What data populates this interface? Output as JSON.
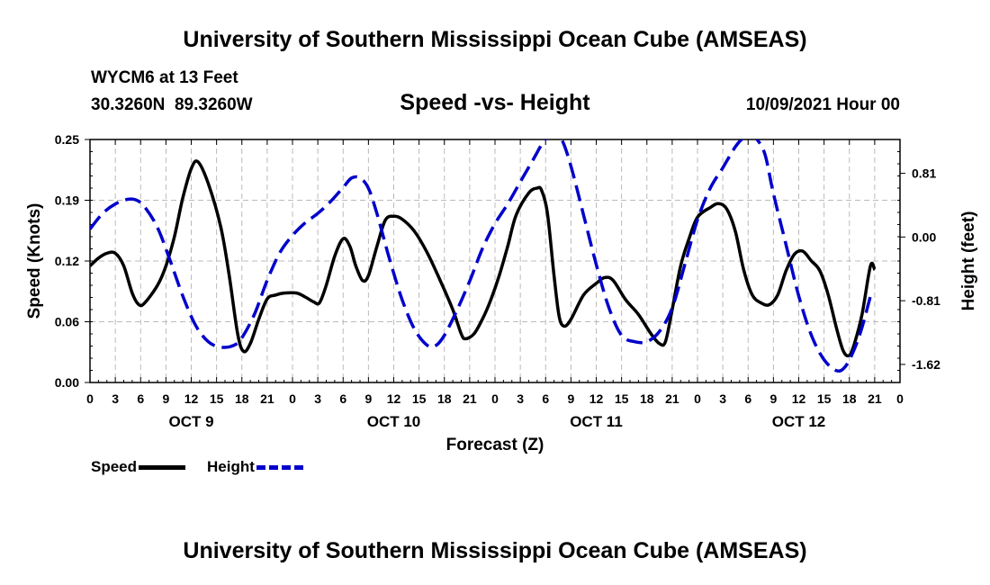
{
  "header": {
    "title": "University of Southern Mississippi Ocean Cube (AMSEAS)",
    "station": "WYCM6 at 13 Feet",
    "coords": "30.3260N  89.3260W",
    "subtitle": "Speed -vs- Height",
    "datestamp": "10/09/2021 Hour 00"
  },
  "footer": {
    "title": "University of Southern Mississippi Ocean Cube (AMSEAS)"
  },
  "legend": {
    "speed": "Speed",
    "height": "Height"
  },
  "colors": {
    "speed": "#000000",
    "height": "#0000cc",
    "grid": "#bbbbbb"
  },
  "chart_data": {
    "type": "line",
    "title": "Speed -vs- Height",
    "xlabel": "Forecast (Z)",
    "ylabel": "Speed (Knots)",
    "y2label": "Height (feet)",
    "xlim": [
      0,
      96
    ],
    "ylim": [
      0,
      0.25
    ],
    "y2lim": [
      -1.85,
      1.24
    ],
    "yticks": [
      "0.00",
      "0.06",
      "0.12",
      "0.19",
      "0.25"
    ],
    "yticks_values": [
      0,
      0.0625,
      0.125,
      0.1875,
      0.25
    ],
    "y2ticks": [
      "-1.62",
      "-0.81",
      "0.00",
      "0.81"
    ],
    "y2ticks_values": [
      -1.62,
      -0.81,
      0.0,
      0.81
    ],
    "xticks_values": [
      0,
      3,
      6,
      9,
      12,
      15,
      18,
      21,
      24,
      27,
      30,
      33,
      36,
      39,
      42,
      45,
      48,
      51,
      54,
      57,
      60,
      63,
      66,
      69,
      72,
      75,
      78,
      81,
      84,
      87,
      90,
      93,
      96
    ],
    "xticks": [
      "0",
      "3",
      "6",
      "9",
      "12",
      "15",
      "18",
      "21",
      "0",
      "3",
      "6",
      "9",
      "12",
      "15",
      "18",
      "21",
      "0",
      "3",
      "6",
      "9",
      "12",
      "15",
      "18",
      "21",
      "0",
      "3",
      "6",
      "9",
      "12",
      "15",
      "18",
      "21",
      "0"
    ],
    "days": [
      {
        "label": "OCT 9",
        "hour": 12
      },
      {
        "label": "OCT 10",
        "hour": 36
      },
      {
        "label": "OCT 11",
        "hour": 60
      },
      {
        "label": "OCT 12",
        "hour": 84
      }
    ],
    "grid": true,
    "series": [
      {
        "name": "Speed",
        "axis": "left",
        "style": "solid",
        "points": [
          [
            0,
            0.12
          ],
          [
            1,
            0.128
          ],
          [
            2,
            0.133
          ],
          [
            3,
            0.133
          ],
          [
            4,
            0.12
          ],
          [
            5,
            0.092
          ],
          [
            5.8,
            0.08
          ],
          [
            6.5,
            0.082
          ],
          [
            8,
            0.1
          ],
          [
            9,
            0.12
          ],
          [
            10,
            0.15
          ],
          [
            11,
            0.19
          ],
          [
            12,
            0.22
          ],
          [
            12.8,
            0.227
          ],
          [
            14,
            0.205
          ],
          [
            15.5,
            0.16
          ],
          [
            16.5,
            0.11
          ],
          [
            17.5,
            0.05
          ],
          [
            18.2,
            0.032
          ],
          [
            19,
            0.04
          ],
          [
            20,
            0.065
          ],
          [
            21,
            0.086
          ],
          [
            22,
            0.09
          ],
          [
            23,
            0.092
          ],
          [
            24.5,
            0.092
          ],
          [
            25.5,
            0.088
          ],
          [
            26.5,
            0.083
          ],
          [
            27.2,
            0.082
          ],
          [
            28,
            0.1
          ],
          [
            29,
            0.13
          ],
          [
            30,
            0.148
          ],
          [
            30.8,
            0.14
          ],
          [
            31.5,
            0.12
          ],
          [
            32.3,
            0.105
          ],
          [
            33,
            0.11
          ],
          [
            34,
            0.14
          ],
          [
            35,
            0.167
          ],
          [
            36,
            0.171
          ],
          [
            37,
            0.168
          ],
          [
            38.5,
            0.155
          ],
          [
            40,
            0.133
          ],
          [
            41.5,
            0.105
          ],
          [
            43,
            0.075
          ],
          [
            44,
            0.05
          ],
          [
            44.5,
            0.045
          ],
          [
            45.5,
            0.05
          ],
          [
            46.5,
            0.065
          ],
          [
            47.5,
            0.085
          ],
          [
            48.5,
            0.11
          ],
          [
            49.5,
            0.14
          ],
          [
            50.5,
            0.172
          ],
          [
            52,
            0.195
          ],
          [
            53,
            0.2
          ],
          [
            53.5,
            0.198
          ],
          [
            54.2,
            0.175
          ],
          [
            55,
            0.11
          ],
          [
            55.6,
            0.068
          ],
          [
            56.2,
            0.058
          ],
          [
            57,
            0.065
          ],
          [
            58.5,
            0.09
          ],
          [
            60,
            0.102
          ],
          [
            61,
            0.108
          ],
          [
            62,
            0.105
          ],
          [
            63.5,
            0.085
          ],
          [
            65,
            0.07
          ],
          [
            66.5,
            0.05
          ],
          [
            67.5,
            0.04
          ],
          [
            68.2,
            0.042
          ],
          [
            69,
            0.075
          ],
          [
            70,
            0.12
          ],
          [
            71,
            0.148
          ],
          [
            72,
            0.17
          ],
          [
            73.5,
            0.18
          ],
          [
            74.5,
            0.184
          ],
          [
            75.5,
            0.178
          ],
          [
            76.5,
            0.155
          ],
          [
            77.5,
            0.115
          ],
          [
            78.5,
            0.09
          ],
          [
            79.5,
            0.082
          ],
          [
            80.5,
            0.08
          ],
          [
            81.5,
            0.09
          ],
          [
            82.5,
            0.115
          ],
          [
            83.5,
            0.132
          ],
          [
            84.5,
            0.135
          ],
          [
            85.5,
            0.125
          ],
          [
            86.5,
            0.115
          ],
          [
            87.5,
            0.09
          ],
          [
            88.5,
            0.055
          ],
          [
            89.3,
            0.032
          ],
          [
            90,
            0.028
          ],
          [
            90.6,
            0.04
          ],
          [
            91.5,
            0.07
          ],
          [
            92.5,
            0.12
          ],
          [
            93,
            0.116
          ]
        ]
      },
      {
        "name": "Height",
        "axis": "right",
        "style": "dashed",
        "points": [
          [
            0,
            0.1
          ],
          [
            1.5,
            0.3
          ],
          [
            3,
            0.42
          ],
          [
            4.5,
            0.48
          ],
          [
            5.5,
            0.47
          ],
          [
            6.5,
            0.38
          ],
          [
            8,
            0.12
          ],
          [
            9.5,
            -0.3
          ],
          [
            11,
            -0.75
          ],
          [
            12.5,
            -1.12
          ],
          [
            14,
            -1.33
          ],
          [
            15.5,
            -1.4
          ],
          [
            17,
            -1.38
          ],
          [
            18,
            -1.28
          ],
          [
            19.5,
            -0.98
          ],
          [
            21,
            -0.55
          ],
          [
            22.5,
            -0.2
          ],
          [
            24,
            0.02
          ],
          [
            25.5,
            0.18
          ],
          [
            27,
            0.3
          ],
          [
            28.5,
            0.45
          ],
          [
            30,
            0.63
          ],
          [
            31,
            0.75
          ],
          [
            32,
            0.75
          ],
          [
            33,
            0.62
          ],
          [
            34,
            0.3
          ],
          [
            35.5,
            -0.28
          ],
          [
            37,
            -0.8
          ],
          [
            38.5,
            -1.18
          ],
          [
            40,
            -1.38
          ],
          [
            41,
            -1.38
          ],
          [
            42,
            -1.25
          ],
          [
            43.5,
            -0.93
          ],
          [
            45,
            -0.56
          ],
          [
            46.5,
            -0.15
          ],
          [
            48,
            0.17
          ],
          [
            49.5,
            0.42
          ],
          [
            51,
            0.7
          ],
          [
            52.5,
            0.98
          ],
          [
            54,
            1.25
          ],
          [
            55.2,
            1.31
          ],
          [
            56,
            1.22
          ],
          [
            57,
            0.9
          ],
          [
            58.5,
            0.28
          ],
          [
            60,
            -0.35
          ],
          [
            61.5,
            -0.9
          ],
          [
            63,
            -1.25
          ],
          [
            64.5,
            -1.33
          ],
          [
            66,
            -1.33
          ],
          [
            67.5,
            -1.2
          ],
          [
            69,
            -0.9
          ],
          [
            70.5,
            -0.35
          ],
          [
            72,
            0.22
          ],
          [
            73.5,
            0.62
          ],
          [
            75,
            0.88
          ],
          [
            76.5,
            1.15
          ],
          [
            77.5,
            1.27
          ],
          [
            78.3,
            1.32
          ],
          [
            79,
            1.25
          ],
          [
            80,
            1.05
          ],
          [
            81,
            0.55
          ],
          [
            82.5,
            -0.1
          ],
          [
            84,
            -0.75
          ],
          [
            85.5,
            -1.25
          ],
          [
            87,
            -1.56
          ],
          [
            88.5,
            -1.7
          ],
          [
            89.5,
            -1.65
          ],
          [
            90.5,
            -1.45
          ],
          [
            91.5,
            -1.15
          ],
          [
            92.5,
            -0.75
          ]
        ]
      }
    ]
  }
}
